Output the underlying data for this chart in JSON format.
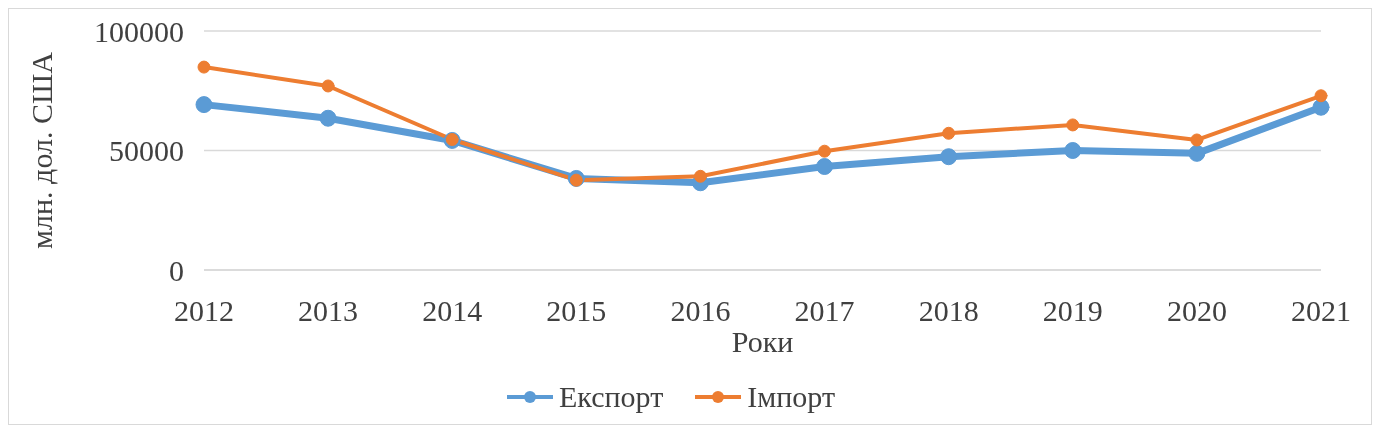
{
  "chart_data": {
    "type": "line",
    "xlabel": "Роки",
    "ylabel": "млн. дол. США",
    "categories": [
      "2012",
      "2013",
      "2014",
      "2015",
      "2016",
      "2017",
      "2018",
      "2019",
      "2020",
      "2021"
    ],
    "series": [
      {
        "name": "Експорт",
        "color": "#5b9bd5",
        "values": [
          69200,
          63500,
          54200,
          38300,
          36500,
          43300,
          47400,
          50000,
          48800,
          68100
        ]
      },
      {
        "name": "Імпорт",
        "color": "#ed7d31",
        "values": [
          84900,
          77000,
          54600,
          37600,
          39200,
          49700,
          57200,
          60700,
          54400,
          72900
        ]
      }
    ],
    "ylim": [
      0,
      100000
    ],
    "yticks": [
      0,
      50000,
      100000
    ],
    "grid": "y",
    "legend": "bottom",
    "marker": "circle",
    "line_style": "solid"
  }
}
